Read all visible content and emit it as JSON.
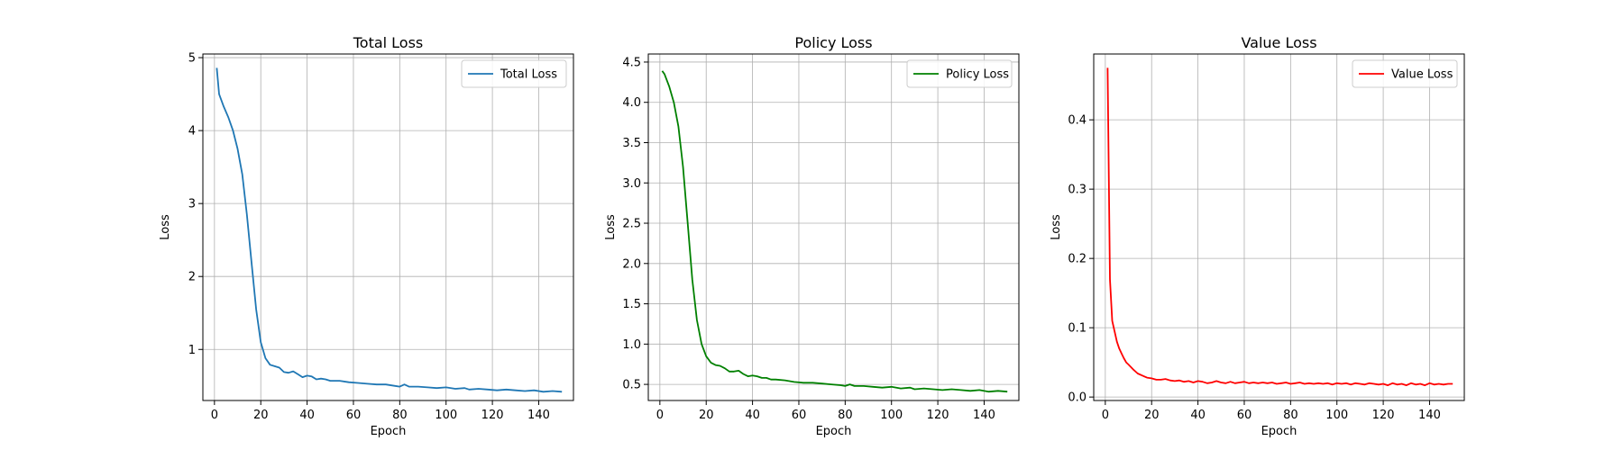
{
  "chart_data": [
    {
      "type": "line",
      "title": "Total Loss",
      "xlabel": "Epoch",
      "ylabel": "Loss",
      "xlim": [
        -5,
        155
      ],
      "ylim": [
        0.3,
        5.05
      ],
      "xticks": [
        0,
        20,
        40,
        60,
        80,
        100,
        120,
        140
      ],
      "yticks": [
        1,
        2,
        3,
        4,
        5
      ],
      "ytick_labels": [
        "1",
        "2",
        "3",
        "4",
        "5"
      ],
      "grid": true,
      "legend_position": "upper right",
      "series": [
        {
          "name": "Total Loss",
          "color": "#1f77b4",
          "points": [
            [
              1,
              4.86
            ],
            [
              2,
              4.5
            ],
            [
              4,
              4.33
            ],
            [
              6,
              4.18
            ],
            [
              8,
              4.0
            ],
            [
              10,
              3.75
            ],
            [
              12,
              3.4
            ],
            [
              14,
              2.85
            ],
            [
              16,
              2.2
            ],
            [
              18,
              1.55
            ],
            [
              20,
              1.1
            ],
            [
              22,
              0.88
            ],
            [
              24,
              0.79
            ],
            [
              26,
              0.77
            ],
            [
              28,
              0.75
            ],
            [
              30,
              0.69
            ],
            [
              32,
              0.68
            ],
            [
              34,
              0.7
            ],
            [
              36,
              0.66
            ],
            [
              38,
              0.62
            ],
            [
              40,
              0.64
            ],
            [
              42,
              0.63
            ],
            [
              44,
              0.59
            ],
            [
              46,
              0.6
            ],
            [
              48,
              0.59
            ],
            [
              50,
              0.57
            ],
            [
              54,
              0.57
            ],
            [
              58,
              0.55
            ],
            [
              62,
              0.54
            ],
            [
              66,
              0.53
            ],
            [
              70,
              0.52
            ],
            [
              74,
              0.52
            ],
            [
              78,
              0.5
            ],
            [
              80,
              0.49
            ],
            [
              82,
              0.52
            ],
            [
              84,
              0.49
            ],
            [
              88,
              0.49
            ],
            [
              92,
              0.48
            ],
            [
              96,
              0.47
            ],
            [
              100,
              0.48
            ],
            [
              104,
              0.46
            ],
            [
              108,
              0.47
            ],
            [
              110,
              0.45
            ],
            [
              114,
              0.46
            ],
            [
              118,
              0.45
            ],
            [
              122,
              0.44
            ],
            [
              126,
              0.45
            ],
            [
              130,
              0.44
            ],
            [
              134,
              0.43
            ],
            [
              138,
              0.44
            ],
            [
              142,
              0.42
            ],
            [
              146,
              0.43
            ],
            [
              150,
              0.42
            ]
          ]
        }
      ]
    },
    {
      "type": "line",
      "title": "Policy Loss",
      "xlabel": "Epoch",
      "ylabel": "Loss",
      "xlim": [
        -5,
        155
      ],
      "ylim": [
        0.3,
        4.6
      ],
      "xticks": [
        0,
        20,
        40,
        60,
        80,
        100,
        120,
        140
      ],
      "yticks": [
        0.5,
        1.0,
        1.5,
        2.0,
        2.5,
        3.0,
        3.5,
        4.0,
        4.5
      ],
      "ytick_labels": [
        "0.5",
        "1.0",
        "1.5",
        "2.0",
        "2.5",
        "3.0",
        "3.5",
        "4.0",
        "4.5"
      ],
      "grid": true,
      "legend_position": "upper right",
      "series": [
        {
          "name": "Policy Loss",
          "color": "#008000",
          "points": [
            [
              1,
              4.39
            ],
            [
              2,
              4.35
            ],
            [
              4,
              4.2
            ],
            [
              6,
              4.0
            ],
            [
              8,
              3.7
            ],
            [
              10,
              3.2
            ],
            [
              12,
              2.5
            ],
            [
              14,
              1.8
            ],
            [
              16,
              1.3
            ],
            [
              18,
              1.0
            ],
            [
              20,
              0.85
            ],
            [
              22,
              0.77
            ],
            [
              24,
              0.74
            ],
            [
              26,
              0.73
            ],
            [
              28,
              0.7
            ],
            [
              30,
              0.66
            ],
            [
              32,
              0.66
            ],
            [
              34,
              0.67
            ],
            [
              36,
              0.63
            ],
            [
              38,
              0.6
            ],
            [
              40,
              0.61
            ],
            [
              42,
              0.6
            ],
            [
              44,
              0.58
            ],
            [
              46,
              0.58
            ],
            [
              48,
              0.56
            ],
            [
              50,
              0.56
            ],
            [
              54,
              0.55
            ],
            [
              58,
              0.53
            ],
            [
              62,
              0.52
            ],
            [
              66,
              0.52
            ],
            [
              70,
              0.51
            ],
            [
              74,
              0.5
            ],
            [
              78,
              0.49
            ],
            [
              80,
              0.48
            ],
            [
              82,
              0.5
            ],
            [
              84,
              0.48
            ],
            [
              88,
              0.48
            ],
            [
              92,
              0.47
            ],
            [
              96,
              0.46
            ],
            [
              100,
              0.47
            ],
            [
              104,
              0.45
            ],
            [
              108,
              0.46
            ],
            [
              110,
              0.44
            ],
            [
              114,
              0.45
            ],
            [
              118,
              0.44
            ],
            [
              122,
              0.43
            ],
            [
              126,
              0.44
            ],
            [
              130,
              0.43
            ],
            [
              134,
              0.42
            ],
            [
              138,
              0.43
            ],
            [
              142,
              0.41
            ],
            [
              146,
              0.42
            ],
            [
              150,
              0.41
            ]
          ]
        }
      ]
    },
    {
      "type": "line",
      "title": "Value Loss",
      "xlabel": "Epoch",
      "ylabel": "Loss",
      "xlim": [
        -5,
        155
      ],
      "ylim": [
        -0.005,
        0.495
      ],
      "xticks": [
        0,
        20,
        40,
        60,
        80,
        100,
        120,
        140
      ],
      "yticks": [
        0.0,
        0.1,
        0.2,
        0.3,
        0.4
      ],
      "ytick_labels": [
        "0.0",
        "0.1",
        "0.2",
        "0.3",
        "0.4"
      ],
      "grid": true,
      "legend_position": "upper right",
      "series": [
        {
          "name": "Value Loss",
          "color": "#ff0000",
          "points": [
            [
              1,
              0.475
            ],
            [
              2,
              0.17
            ],
            [
              3,
              0.11
            ],
            [
              4,
              0.095
            ],
            [
              5,
              0.08
            ],
            [
              6,
              0.07
            ],
            [
              7,
              0.063
            ],
            [
              8,
              0.056
            ],
            [
              9,
              0.05
            ],
            [
              10,
              0.047
            ],
            [
              12,
              0.04
            ],
            [
              14,
              0.034
            ],
            [
              16,
              0.031
            ],
            [
              18,
              0.028
            ],
            [
              20,
              0.027
            ],
            [
              22,
              0.025
            ],
            [
              24,
              0.025
            ],
            [
              26,
              0.026
            ],
            [
              28,
              0.024
            ],
            [
              30,
              0.023
            ],
            [
              32,
              0.024
            ],
            [
              34,
              0.022
            ],
            [
              36,
              0.023
            ],
            [
              38,
              0.021
            ],
            [
              40,
              0.023
            ],
            [
              42,
              0.022
            ],
            [
              44,
              0.02
            ],
            [
              46,
              0.021
            ],
            [
              48,
              0.023
            ],
            [
              50,
              0.021
            ],
            [
              52,
              0.02
            ],
            [
              54,
              0.022
            ],
            [
              56,
              0.02
            ],
            [
              58,
              0.021
            ],
            [
              60,
              0.022
            ],
            [
              62,
              0.02
            ],
            [
              64,
              0.021
            ],
            [
              66,
              0.02
            ],
            [
              68,
              0.021
            ],
            [
              70,
              0.02
            ],
            [
              72,
              0.021
            ],
            [
              74,
              0.019
            ],
            [
              76,
              0.02
            ],
            [
              78,
              0.021
            ],
            [
              80,
              0.019
            ],
            [
              82,
              0.02
            ],
            [
              84,
              0.021
            ],
            [
              86,
              0.019
            ],
            [
              88,
              0.02
            ],
            [
              90,
              0.019
            ],
            [
              92,
              0.02
            ],
            [
              94,
              0.019
            ],
            [
              96,
              0.02
            ],
            [
              98,
              0.018
            ],
            [
              100,
              0.02
            ],
            [
              102,
              0.019
            ],
            [
              104,
              0.02
            ],
            [
              106,
              0.018
            ],
            [
              108,
              0.02
            ],
            [
              110,
              0.019
            ],
            [
              112,
              0.018
            ],
            [
              114,
              0.02
            ],
            [
              116,
              0.019
            ],
            [
              118,
              0.018
            ],
            [
              120,
              0.019
            ],
            [
              122,
              0.017
            ],
            [
              124,
              0.02
            ],
            [
              126,
              0.018
            ],
            [
              128,
              0.019
            ],
            [
              130,
              0.017
            ],
            [
              132,
              0.02
            ],
            [
              134,
              0.018
            ],
            [
              136,
              0.019
            ],
            [
              138,
              0.017
            ],
            [
              140,
              0.02
            ],
            [
              142,
              0.018
            ],
            [
              144,
              0.019
            ],
            [
              146,
              0.018
            ],
            [
              148,
              0.019
            ],
            [
              150,
              0.019
            ]
          ]
        }
      ]
    }
  ]
}
